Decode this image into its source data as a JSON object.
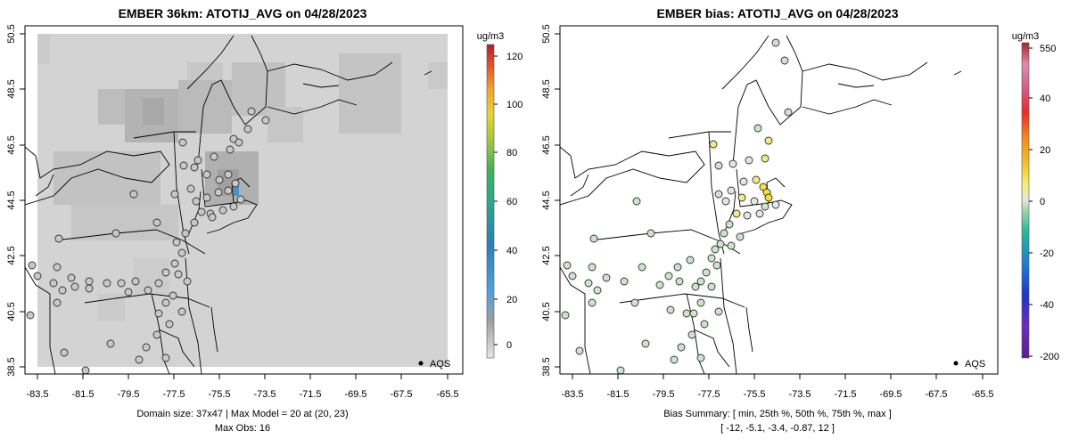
{
  "chart_data": [
    {
      "type": "map",
      "title": "EMBER 36km: ATOTIJ_AVG on 04/28/2023",
      "x_ticks": [
        "-83.5",
        "-81.5",
        "-79.5",
        "-77.5",
        "-75.5",
        "-73.5",
        "-71.5",
        "-69.5",
        "-67.5",
        "-65.5"
      ],
      "y_ticks": [
        "38.5",
        "40.5",
        "42.5",
        "44.5",
        "46.5",
        "48.5",
        "50.5"
      ],
      "xlim": [
        -84.2,
        -65.2
      ],
      "ylim": [
        38.4,
        50.6
      ],
      "colorbar_title": "ug/m3",
      "colorbar_ticks": [
        "0",
        "20",
        "40",
        "60",
        "80",
        "100",
        "120"
      ],
      "colorbar_range": [
        -6,
        130
      ],
      "legend_label": "AQS",
      "caption_lines": [
        "Domain size: 37x47 | Max Model = 20 at (20, 23)",
        "Max Obs: 16"
      ]
    },
    {
      "type": "map",
      "title": "EMBER bias: ATOTIJ_AVG on 04/28/2023",
      "x_ticks": [
        "-83.5",
        "-81.5",
        "-79.5",
        "-77.5",
        "-75.5",
        "-73.5",
        "-71.5",
        "-69.5",
        "-67.5",
        "-65.5"
      ],
      "y_ticks": [
        "38.5",
        "40.5",
        "42.5",
        "44.5",
        "46.5",
        "48.5",
        "50.5"
      ],
      "xlim": [
        -84.2,
        -65.2
      ],
      "ylim": [
        38.4,
        50.6
      ],
      "colorbar_title": "ug/m3",
      "colorbar_ticks": [
        "550",
        "40",
        "20",
        "0",
        "-20",
        "-40",
        "-200"
      ],
      "legend_label": "AQS",
      "caption_lines": [
        "Bias Summary: [ min, 25th %, 50th %, 75th %, max ]",
        "[ -12,  -5.1,  -3.4,  -0.87,  12 ]"
      ]
    }
  ]
}
